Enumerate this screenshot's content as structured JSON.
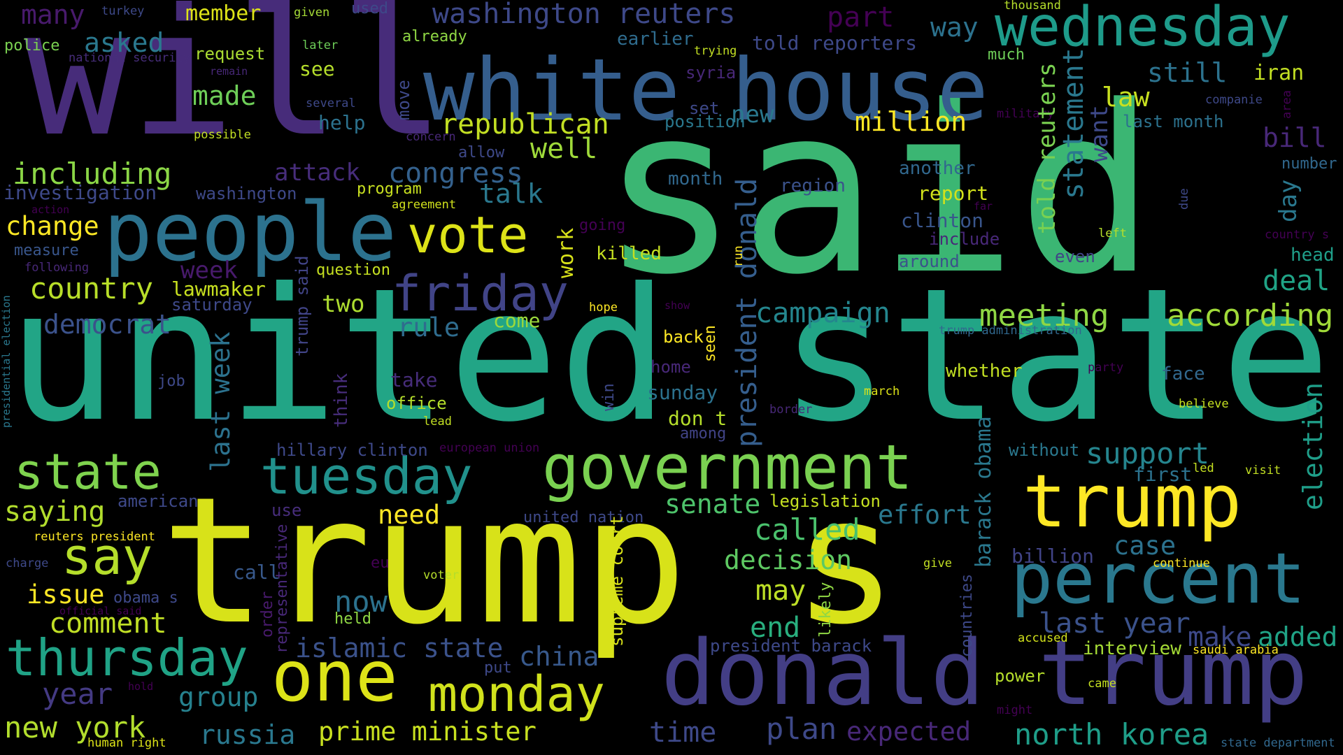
{
  "colors": {
    "background": "#000000",
    "palette": [
      "#440154",
      "#482878",
      "#3e4989",
      "#31688e",
      "#26828e",
      "#1f9e89",
      "#35b779",
      "#6ece58",
      "#b5de2b",
      "#fde725"
    ]
  },
  "words": {
    "said": "said",
    "united_state": "united state",
    "trump_s": "trump s",
    "will": "will",
    "white_house": "white house",
    "donald_trump": "donald trump",
    "people": "people",
    "government": "government",
    "percent": "percent",
    "trump": "trump",
    "one": "one",
    "wednesday": "wednesday",
    "vote": "vote",
    "thursday": "thursday",
    "tuesday": "tuesday",
    "state": "state",
    "monday": "monday",
    "friday": "friday",
    "say": "say",
    "president_donald": "president donald",
    "islamic_state": "islamic state",
    "north_korea": "north korea",
    "washington_reuters": "washington reuters",
    "meeting": "meeting",
    "according": "according",
    "support": "support",
    "campaign": "campaign",
    "called": "called",
    "prime_minister": "prime minister",
    "republican": "republican",
    "told_reuters": "told reuters",
    "statement": "statement",
    "congress": "congress",
    "including": "including",
    "country": "country",
    "democrat": "democrat",
    "saying": "saying",
    "change": "change",
    "comment": "comment",
    "issue": "issue",
    "year": "year",
    "new_york": "new york",
    "group": "group",
    "russia": "russia",
    "time": "time",
    "plan": "plan",
    "expected": "expected",
    "decision": "decision",
    "may": "may",
    "end": "end",
    "now": "now",
    "need": "need",
    "senate": "senate",
    "effort": "effort",
    "case": "case",
    "billion": "billion",
    "last_year": "last year",
    "make": "make",
    "added": "added",
    "interview": "interview",
    "election": "election",
    "barack_obama": "barack obama",
    "last_week": "last week",
    "china": "china",
    "deal": "deal",
    "day": "day",
    "head": "head",
    "bill": "bill",
    "still": "still",
    "iran": "iran",
    "last_month": "last month",
    "law": "law",
    "want": "want",
    "million": "million",
    "new": "new",
    "well": "well",
    "talk": "talk",
    "work": "work",
    "killed": "killed",
    "month": "month",
    "region": "region",
    "another": "another",
    "report": "report",
    "clinton": "clinton",
    "include": "include",
    "around": "around",
    "even": "even",
    "rule": "rule",
    "two": "two",
    "come": "come",
    "back": "back",
    "home": "home",
    "sunday": "sunday",
    "dont_t": "don t",
    "among": "among",
    "hillary_clinton": "hillary clinton",
    "european_union": "european union",
    "take": "take",
    "office": "office",
    "lead": "lead",
    "think": "think",
    "trump_said": "trump said",
    "week": "week",
    "lawmaker": "lawmaker",
    "saturday": "saturday",
    "question": "question",
    "measure": "measure",
    "following": "following",
    "investigation": "investigation",
    "action": "action",
    "washington": "washington",
    "program": "program",
    "agreement": "agreement",
    "going": "going",
    "attack": "attack",
    "allow": "allow",
    "concern": "concern",
    "possible": "possible",
    "help": "help",
    "made": "made",
    "several": "several",
    "see": "see",
    "request": "request",
    "later": "later",
    "remain": "remain",
    "national_security": "national security",
    "police": "police",
    "asked": "asked",
    "many": "many",
    "turkey": "turkey",
    "member": "member",
    "given": "given",
    "used": "used",
    "already": "already",
    "move": "move",
    "part": "part",
    "way": "way",
    "earlier": "earlier",
    "told_reporters": "told reporters",
    "trying": "trying",
    "syria": "syria",
    "set": "set",
    "position": "position",
    "much": "much",
    "military": "military",
    "thousand": "thousand",
    "companie": "companie",
    "area": "area",
    "number": "number",
    "due": "due",
    "far": "far",
    "left": "left",
    "country_s": "country s",
    "run": "run",
    "hope": "hope",
    "show": "show",
    "seen": "seen",
    "trump_administration": "trump administration",
    "whether": "whether",
    "party": "party",
    "face": "face",
    "march": "march",
    "border": "border",
    "believe": "believe",
    "win": "win",
    "without": "without",
    "first": "first",
    "led": "led",
    "visit": "visit",
    "legislation": "legislation",
    "united_nation": "united nation",
    "use": "use",
    "eu": "eu",
    "give": "give",
    "continue": "continue",
    "voter": "voter",
    "call": "call",
    "held": "held",
    "order": "order",
    "representative": "representative",
    "likely": "likely",
    "supreme_court": "supreme court",
    "countries": "countries",
    "president_barack": "president barack",
    "accused": "accused",
    "saudi_arabia": "saudi arabia",
    "put": "put",
    "power": "power",
    "came": "came",
    "might": "might",
    "state_department": "state department",
    "hold": "hold",
    "obama_s": "obama s",
    "official_said": "official said",
    "american": "american",
    "reuters_president": "reuters president",
    "charge": "charge",
    "human_right": "human right",
    "job": "job",
    "presidential_election": "presidential election"
  }
}
